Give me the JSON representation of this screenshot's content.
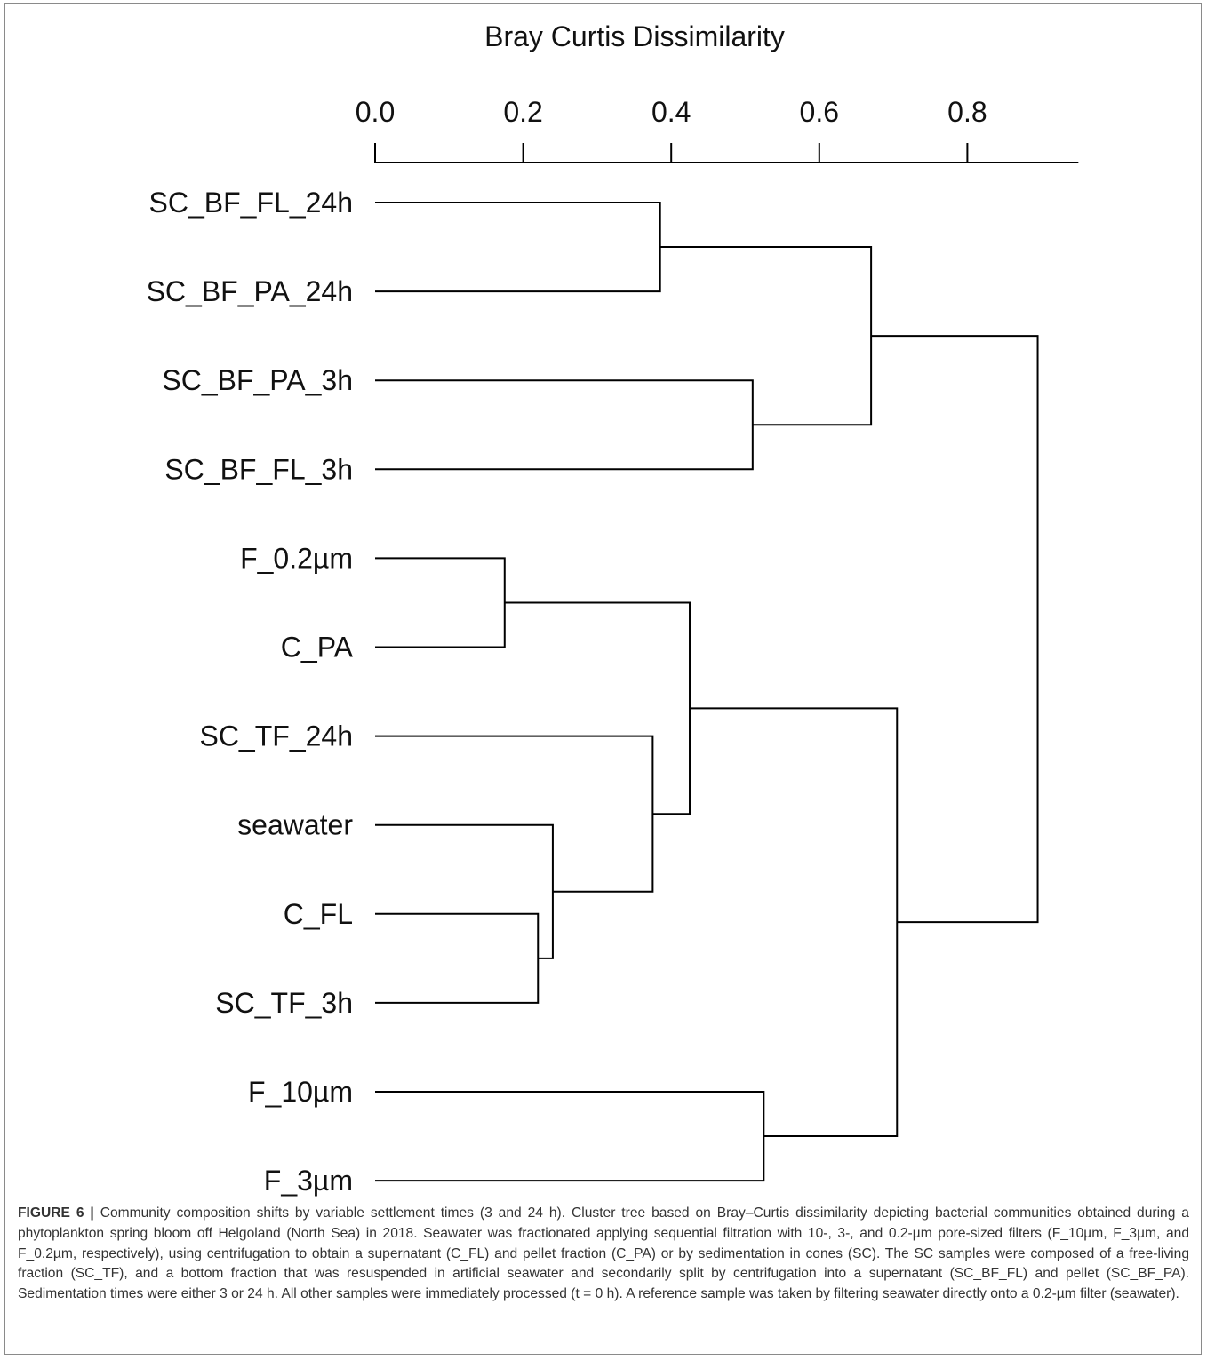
{
  "chart_data": {
    "type": "dendrogram",
    "title": "",
    "xlabel": "Bray Curtis Dissimilarity",
    "ylabel": "",
    "xlim": [
      0.0,
      0.95
    ],
    "x_ticks": [
      0.0,
      0.2,
      0.4,
      0.6,
      0.8
    ],
    "x_tick_labels": [
      "0.0",
      "0.2",
      "0.4",
      "0.6",
      "0.8"
    ],
    "leaves": [
      "SC_BF_FL_24h",
      "SC_BF_PA_24h",
      "SC_BF_PA_3h",
      "SC_BF_FL_3h",
      "F_0.2µm",
      "C_PA",
      "SC_TF_24h",
      "seawater",
      "C_FL",
      "SC_TF_3h",
      "F_10µm",
      "F_3µm"
    ],
    "merges": [
      {
        "left": "leaf:0",
        "right": "leaf:1",
        "height": 0.385
      },
      {
        "left": "leaf:2",
        "right": "leaf:3",
        "height": 0.51
      },
      {
        "left": "merge:0",
        "right": "merge:1",
        "height": 0.67
      },
      {
        "left": "leaf:4",
        "right": "leaf:5",
        "height": 0.175
      },
      {
        "left": "leaf:8",
        "right": "leaf:9",
        "height": 0.22
      },
      {
        "left": "leaf:7",
        "right": "merge:4",
        "height": 0.24
      },
      {
        "left": "leaf:6",
        "right": "merge:5",
        "height": 0.375
      },
      {
        "left": "merge:3",
        "right": "merge:6",
        "height": 0.425
      },
      {
        "left": "leaf:10",
        "right": "leaf:11",
        "height": 0.525
      },
      {
        "left": "merge:7",
        "right": "merge:8",
        "height": 0.705
      },
      {
        "left": "merge:2",
        "right": "merge:9",
        "height": 0.895
      }
    ]
  },
  "caption": {
    "label": "FIGURE 6 |",
    "text": " Community composition shifts by variable settlement times (3 and 24 h). Cluster tree based on Bray–Curtis dissimilarity depicting bacterial communities obtained during a phytoplankton spring bloom off Helgoland (North Sea) in 2018. Seawater was fractionated applying sequential filtration with 10-, 3-, and 0.2-µm pore-sized filters (F_10µm, F_3µm, and F_0.2µm, respectively), using centrifugation to obtain a supernatant (C_FL) and pellet fraction (C_PA) or by sedimentation in cones (SC). The SC samples were composed of a free-living fraction (SC_TF), and a bottom fraction that was resuspended in artificial seawater and secondarily split by centrifugation into a supernatant (SC_BF_FL) and pellet (SC_BF_PA). Sedimentation times were either 3 or 24 h. All other samples were immediately processed (t = 0 h). A reference sample was taken by filtering seawater directly onto a 0.2-µm filter (seawater)."
  },
  "colors": {
    "line": "#000000",
    "text": "#111111",
    "caption_text": "#333333",
    "frame": "#8a8a8a"
  }
}
